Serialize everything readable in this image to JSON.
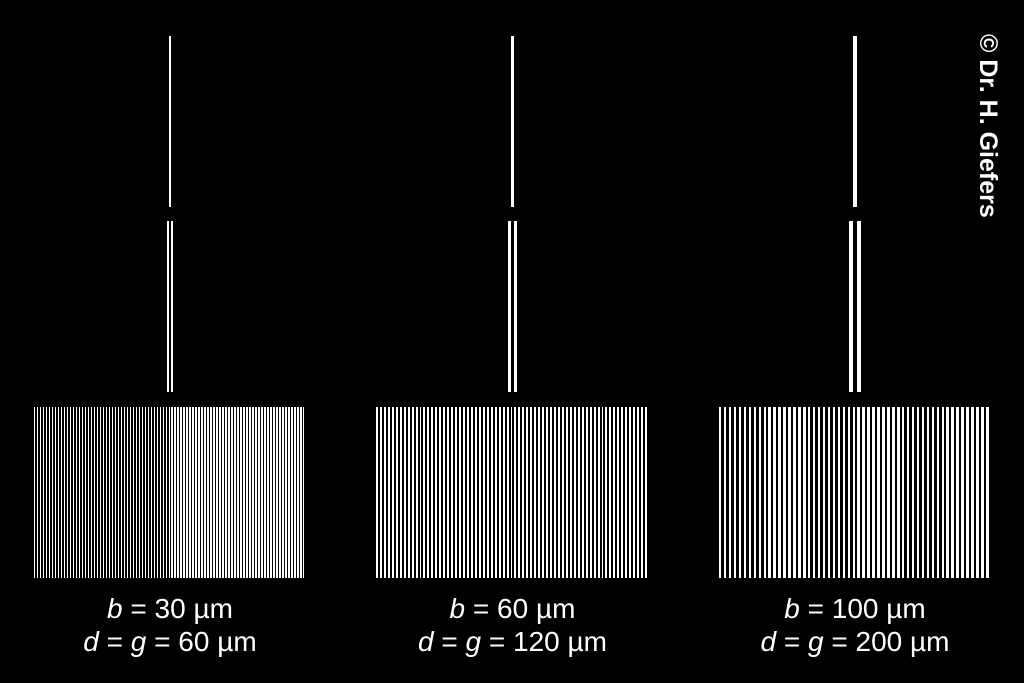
{
  "copyright": "© Dr. H. Giefers",
  "columns": [
    {
      "b": "30",
      "d_g": "60",
      "unit": "µm",
      "b_symbol": "b",
      "d_symbol": "d",
      "g_symbol": "g",
      "grating_lines": 91
    },
    {
      "b": "60",
      "d_g": "120",
      "unit": "µm",
      "b_symbol": "b",
      "d_symbol": "d",
      "g_symbol": "g",
      "grating_lines": 69
    },
    {
      "b": "100",
      "d_g": "200",
      "unit": "µm",
      "b_symbol": "b",
      "d_symbol": "d",
      "g_symbol": "g",
      "grating_lines": 55
    }
  ],
  "colors": {
    "background": "#000000",
    "slit": "#ffffff"
  }
}
